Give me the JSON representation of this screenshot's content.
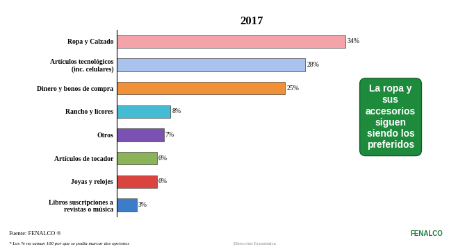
{
  "chart_data": {
    "type": "bar",
    "orientation": "horizontal",
    "title": "2017",
    "categories": [
      "Ropa y Calzado",
      "Artículos tecnológicos (inc. celulares)",
      "Dinero y bonos de compra",
      "Rancho y licores",
      "Otros",
      "Artículos de tocador",
      "Joyas y relojes",
      "Libros suscripciones a revistas o música"
    ],
    "values": [
      34,
      28,
      25,
      8,
      7,
      6,
      6,
      3
    ],
    "value_labels": [
      "34%",
      "28%",
      "25%",
      "8%",
      "7%",
      "6%",
      "6%",
      "3%"
    ],
    "colors": [
      "#f4a3a8",
      "#a9c2ee",
      "#f0913a",
      "#45bcd3",
      "#7b52b3",
      "#8db35a",
      "#d9443f",
      "#3d7cc9"
    ],
    "xlim": [
      0,
      40
    ],
    "data_labels": true,
    "tick_labels": "y",
    "grid": false
  },
  "callout": "La ropa y sus accesorios siguen siendo los preferidos",
  "source": "Fuente: FENALCO ®",
  "footnote": "* Los % no suman 100 por que se podía marcar dos opciones",
  "department": "Dirección Económica",
  "logo": "FENALCO"
}
